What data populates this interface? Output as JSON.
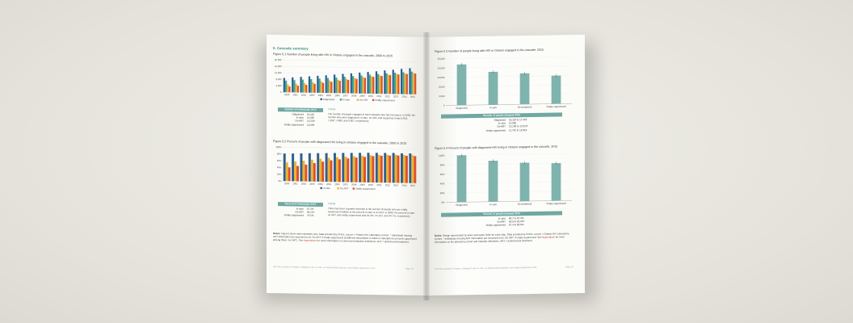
{
  "left_page": {
    "section_title": "5.  Cascade summary",
    "figure1": {
      "title": "Figure 5.1",
      "caption": "Number of people living with HIV in Ontario engaged in the cascade, 2000 to 2015"
    },
    "table1": {
      "header": "Number of individuals 2015",
      "rows": [
        {
          "label": "Diagnosed",
          "value": "16,110"
        },
        {
          "label": "In care",
          "value": "14,065"
        },
        {
          "label": "On ART",
          "value": "13,234*"
        },
        {
          "label": "Virally suppressed",
          "value": "12,809"
        }
      ],
      "trends_title": "Trends",
      "trends_text": "The number of people engaged in each cascade step has increased. In 2000, the number who were diagnosed, in care, on ART, and suppressed was 8,859, 7,202*, 4,880, and 3,607, respectively."
    },
    "figure2": {
      "title": "Figure 5.2",
      "caption": "Percent of people with diagnosed HIV living in Ontario engaged in the cascade, 2000 to 2015"
    },
    "table2": {
      "header": "Percent of individuals 2015",
      "rows": [
        {
          "label": "In care",
          "value": "87.3%"
        },
        {
          "label": "On ART",
          "value": "82.1%*"
        },
        {
          "label": "Virally suppressed",
          "value": "79.5%"
        }
      ],
      "trends_title": "Trends",
      "trends_text": "There has been a greater increase in the percent of people who are virally suppressed relative to the percent in care or on ART. In 2000, the percent in care, on ART, and virally suppressed was 81.3%, 55.1%*, and 40.7%, respectively."
    },
    "notes_label": "Notes:",
    "notes_text": "Figures show main estimates only. Data provided by PHOL; source = Ontario HIV Laboratory Cohort. * Individuals missing ART information are assumed to be 'On ART' if virally suppressed (a different assumption is made to calculate the percent suppressed among those 'on ART'). See",
    "notes_link": "Appendices",
    "notes_tail": "for more information on cohort and indicator definitions. ART = antiretroviral treatment.",
    "footer": "HIV care cascade in Ontario: Linkage to care, in care, on antiretroviral treatment, and virally suppressed, 2015",
    "page_number": "Page 18"
  },
  "right_page": {
    "figure3": {
      "title": "Figure 5.3",
      "caption": "Number of people living with HIV in Ontario engaged in the cascade, 2015"
    },
    "table3": {
      "header": "Number of people (ranges) 2015",
      "rows": [
        {
          "label": "Diagnosed",
          "value": "16,110 to 17,423"
        },
        {
          "label": "In care",
          "value": "14,065"
        },
        {
          "label": "On ART",
          "value": "13,183 to 13,213*"
        },
        {
          "label": "Virally suppressed",
          "value": "11,742 to 12,016"
        }
      ]
    },
    "figure4": {
      "title": "Figure 5.4",
      "caption": "Percent of people with diagnosed HIV living in Ontario engaged in the cascade, 2015"
    },
    "table4": {
      "header": "Percent of people (ranges) 2015",
      "rows": [
        {
          "label": "In care",
          "value": "80.7 to 87.3%"
        },
        {
          "label": "On ART",
          "value": "69.9 to 82.0%*"
        },
        {
          "label": "Virally suppressed",
          "value": "67.4 to 80.0%"
        }
      ]
    },
    "notes_label": "Notes:",
    "notes_text": "Range represented by lower and upper limits for each step. Data provided by PHOL; source = Ontario HIV Laboratory Cohort. * Individuals missing ART information are assumed to be 'On ART' if virally suppressed. See",
    "notes_link": "Appendices",
    "notes_tail": "for more information on the laboratory cohort and indicator definitions. ART = antiretroviral treatment.",
    "footer": "HIV care cascade in Ontario: Linkage to care, in care, on antiretroviral treatment, and virally suppressed, 2015",
    "page_number": "Page 19"
  },
  "colors": {
    "diagnosed": "#2f5f8f",
    "in_care": "#3fa39a",
    "on_art": "#e8b531",
    "suppressed": "#e0502c",
    "teal_bar": "#7fb3ad",
    "teal_header": "#6fa8a1"
  },
  "chart_data": [
    {
      "type": "bar",
      "title": "Number of people living with HIV in Ontario engaged in the cascade, 2000 to 2015",
      "categories": [
        "2000",
        "2001",
        "2002",
        "2003",
        "2004",
        "2005",
        "2006",
        "2007",
        "2008",
        "2009",
        "2010",
        "2011",
        "2012",
        "2013",
        "2014",
        "2015"
      ],
      "series": [
        {
          "name": "Diagnosed",
          "values": [
            8859,
            9300,
            9700,
            10100,
            10500,
            10900,
            11400,
            11900,
            12400,
            12900,
            13400,
            13900,
            14500,
            15000,
            15600,
            16110
          ]
        },
        {
          "name": "In care",
          "values": [
            7202,
            7600,
            8000,
            8400,
            8800,
            9200,
            9700,
            10200,
            10700,
            11200,
            11700,
            12200,
            12700,
            13200,
            13600,
            14065
          ]
        },
        {
          "name": "On ART",
          "values": [
            4880,
            5400,
            5900,
            6500,
            7100,
            7700,
            8300,
            8900,
            9500,
            10100,
            10700,
            11300,
            11900,
            12400,
            12800,
            13234
          ]
        },
        {
          "name": "Virally suppressed",
          "values": [
            3607,
            4200,
            4800,
            5500,
            6200,
            6900,
            7600,
            8300,
            9000,
            9700,
            10400,
            11000,
            11600,
            12100,
            12500,
            12809
          ]
        }
      ],
      "yticks": [
        "0",
        "4,000",
        "8,000",
        "12,000",
        "16,000",
        "20,000"
      ],
      "ylim": [
        0,
        20000
      ],
      "legend_position": "bottom"
    },
    {
      "type": "bar",
      "title": "Percent of people with diagnosed HIV living in Ontario engaged in the cascade, 2000 to 2015",
      "categories": [
        "2000",
        "2001",
        "2002",
        "2003",
        "2004",
        "2005",
        "2006",
        "2007",
        "2008",
        "2009",
        "2010",
        "2011",
        "2012",
        "2013",
        "2014",
        "2015"
      ],
      "series": [
        {
          "name": "In care",
          "values": [
            81.3,
            81.7,
            82.5,
            83.2,
            83.8,
            84.4,
            85.1,
            85.7,
            86.2,
            86.8,
            87.3,
            87.6,
            87.6,
            88.0,
            87.2,
            87.3
          ]
        },
        {
          "name": "On ART",
          "values": [
            55.1,
            58.1,
            60.8,
            64.4,
            67.6,
            70.6,
            72.8,
            74.8,
            76.6,
            78.3,
            79.9,
            81.3,
            82.1,
            82.7,
            82.1,
            82.1
          ]
        },
        {
          "name": "Virally suppressed",
          "values": [
            40.7,
            45.2,
            49.5,
            54.5,
            59.0,
            63.3,
            66.7,
            69.7,
            72.6,
            75.2,
            77.6,
            79.1,
            80.0,
            80.7,
            80.1,
            79.5
          ]
        }
      ],
      "yticks": [
        "0%",
        "20%",
        "40%",
        "60%",
        "80%",
        "100%"
      ],
      "ylim": [
        0,
        100
      ],
      "legend_position": "bottom"
    },
    {
      "type": "bar",
      "title": "Number of people living with HIV in Ontario engaged in the cascade, 2015",
      "categories": [
        "Diagnosed",
        "In care",
        "On treatment",
        "Virally suppressed"
      ],
      "values": [
        17423,
        14065,
        13200,
        12016
      ],
      "yticks": [
        "0",
        "4,000",
        "8,000",
        "12,000",
        "16,000",
        "20,000"
      ],
      "ylim": [
        0,
        20000
      ]
    },
    {
      "type": "bar",
      "title": "Percent of people with diagnosed HIV living in Ontario engaged in the cascade, 2015",
      "categories": [
        "Diagnosed",
        "In care",
        "On treatment",
        "Virally suppressed"
      ],
      "values": [
        100,
        87.3,
        82.0,
        80.0
      ],
      "yticks": [
        "0%",
        "20%",
        "40%",
        "60%",
        "80%",
        "100%"
      ],
      "ylim": [
        0,
        100
      ]
    }
  ]
}
